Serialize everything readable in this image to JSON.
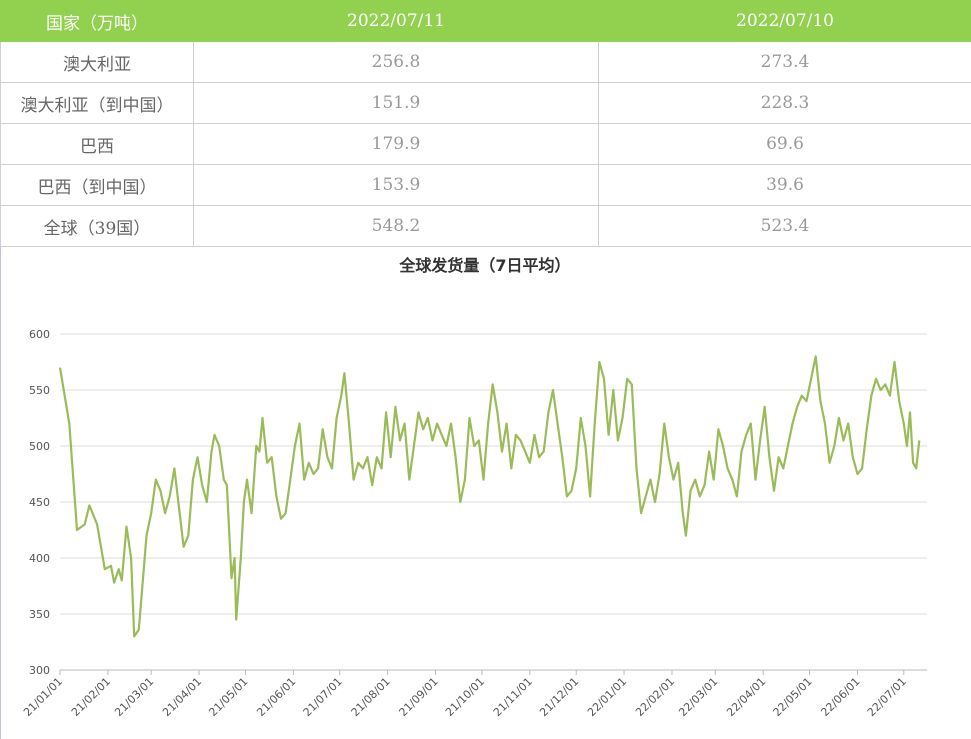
{
  "table": {
    "header": [
      "国家（万吨）",
      "2022/07/11",
      "2022/07/10"
    ],
    "rows": [
      [
        "澳大利亚",
        256.8,
        273.4
      ],
      [
        "澳大利亚（到中国）",
        151.9,
        228.3
      ],
      [
        "巴西",
        179.9,
        69.6
      ],
      [
        "巴西（到中国）",
        153.9,
        39.6
      ],
      [
        "全球（39国）",
        548.2,
        523.4
      ]
    ]
  },
  "chart_data": {
    "type": "line",
    "title": "全球发货量（7日平均）",
    "x": [
      "21/01/01",
      "21/01/07",
      "21/01/12",
      "21/01/17",
      "21/01/20",
      "21/01/25",
      "21/01/30",
      "21/02/03",
      "21/02/05",
      "21/02/08",
      "21/02/10",
      "21/02/13",
      "21/02/16",
      "21/02/18",
      "21/02/21",
      "21/02/26",
      "21/03/01",
      "21/03/04",
      "21/03/07",
      "21/03/10",
      "21/03/13",
      "21/03/16",
      "21/03/19",
      "21/03/22",
      "21/03/25",
      "21/03/28",
      "21/03/31",
      "21/04/03",
      "21/04/06",
      "21/04/09",
      "21/04/11",
      "21/04/14",
      "21/04/17",
      "21/04/19",
      "21/04/22",
      "21/04/24",
      "21/04/25",
      "21/04/28",
      "21/04/30",
      "21/05/02",
      "21/05/05",
      "21/05/08",
      "21/05/10",
      "21/05/12",
      "21/05/15",
      "21/05/18",
      "21/05/21",
      "21/05/24",
      "21/05/27",
      "21/05/30",
      "21/06/02",
      "21/06/05",
      "21/06/08",
      "21/06/11",
      "21/06/14",
      "21/06/17",
      "21/06/20",
      "21/06/23",
      "21/06/26",
      "21/06/29",
      "21/07/02",
      "21/07/04",
      "21/07/07",
      "21/07/10",
      "21/07/13",
      "21/07/16",
      "21/07/19",
      "21/07/22",
      "21/07/25",
      "21/07/28",
      "21/07/31",
      "21/08/03",
      "21/08/06",
      "21/08/09",
      "21/08/12",
      "21/08/15",
      "21/08/18",
      "21/08/21",
      "21/08/24",
      "21/08/27",
      "21/08/30",
      "21/09/02",
      "21/09/05",
      "21/09/08",
      "21/09/11",
      "21/09/14",
      "21/09/17",
      "21/09/20",
      "21/09/23",
      "21/09/26",
      "21/09/29",
      "21/10/02",
      "21/10/05",
      "21/10/08",
      "21/10/11",
      "21/10/14",
      "21/10/17",
      "21/10/20",
      "21/10/23",
      "21/10/26",
      "21/10/29",
      "21/11/01",
      "21/11/04",
      "21/11/07",
      "21/11/10",
      "21/11/13",
      "21/11/16",
      "21/11/19",
      "21/11/22",
      "21/11/25",
      "21/11/28",
      "21/12/01",
      "21/12/04",
      "21/12/07",
      "21/12/10",
      "21/12/13",
      "21/12/16",
      "21/12/19",
      "21/12/22",
      "21/12/25",
      "21/12/28",
      "21/12/31",
      "22/01/03",
      "22/01/06",
      "22/01/09",
      "22/01/12",
      "22/01/15",
      "22/01/18",
      "22/01/21",
      "22/01/24",
      "22/01/27",
      "22/01/30",
      "22/02/02",
      "22/02/05",
      "22/02/08",
      "22/02/10",
      "22/02/13",
      "22/02/16",
      "22/02/19",
      "22/02/22",
      "22/02/25",
      "22/02/28",
      "22/03/03",
      "22/03/06",
      "22/03/09",
      "22/03/12",
      "22/03/15",
      "22/03/18",
      "22/03/21",
      "22/03/24",
      "22/03/27",
      "22/03/30",
      "22/04/02",
      "22/04/05",
      "22/04/08",
      "22/04/11",
      "22/04/14",
      "22/04/17",
      "22/04/20",
      "22/04/23",
      "22/04/26",
      "22/04/29",
      "22/05/02",
      "22/05/05",
      "22/05/08",
      "22/05/11",
      "22/05/14",
      "22/05/17",
      "22/05/20",
      "22/05/23",
      "22/05/26",
      "22/05/29",
      "22/06/01",
      "22/06/04",
      "22/06/07",
      "22/06/10",
      "22/06/13",
      "22/06/16",
      "22/06/19",
      "22/06/22",
      "22/06/25",
      "22/06/28",
      "22/07/01",
      "22/07/03",
      "22/07/05",
      "22/07/07",
      "22/07/09",
      "22/07/11"
    ],
    "series": [
      {
        "name": "全球发货量",
        "color": "#9bbb59",
        "values": [
          570,
          520,
          425,
          430,
          447,
          430,
          390,
          393,
          378,
          390,
          380,
          428,
          400,
          330,
          336,
          420,
          440,
          470,
          460,
          440,
          455,
          480,
          445,
          410,
          420,
          470,
          490,
          465,
          450,
          495,
          510,
          500,
          470,
          465,
          382,
          400,
          345,
          400,
          450,
          470,
          440,
          500,
          495,
          525,
          485,
          490,
          455,
          435,
          440,
          470,
          500,
          520,
          470,
          485,
          475,
          480,
          515,
          490,
          480,
          525,
          545,
          565,
          520,
          470,
          485,
          480,
          490,
          465,
          490,
          480,
          530,
          490,
          535,
          505,
          520,
          470,
          500,
          530,
          515,
          525,
          505,
          520,
          510,
          500,
          520,
          490,
          450,
          470,
          525,
          500,
          505,
          470,
          520,
          555,
          530,
          495,
          520,
          480,
          510,
          505,
          495,
          485,
          510,
          490,
          495,
          530,
          550,
          520,
          490,
          455,
          460,
          480,
          525,
          500,
          455,
          520,
          575,
          560,
          510,
          550,
          505,
          525,
          560,
          555,
          480,
          440,
          455,
          470,
          450,
          475,
          520,
          490,
          470,
          485,
          440,
          420,
          460,
          470,
          455,
          465,
          495,
          470,
          515,
          500,
          480,
          470,
          455,
          495,
          510,
          520,
          470,
          505,
          535,
          490,
          460,
          490,
          480,
          500,
          520,
          535,
          545,
          540,
          560,
          580,
          540,
          520,
          485,
          500,
          525,
          505,
          520,
          490,
          475,
          480,
          515,
          545,
          560,
          550,
          555,
          545,
          575,
          540,
          520,
          500,
          530,
          485,
          480,
          505
        ]
      }
    ],
    "xlim": [
      "21/01/01",
      "22/07/16"
    ],
    "xticks": [
      "21/01/01",
      "21/02/01",
      "21/03/01",
      "21/04/01",
      "21/05/01",
      "21/06/01",
      "21/07/01",
      "21/08/01",
      "21/09/01",
      "21/10/01",
      "21/11/01",
      "21/12/01",
      "22/01/01",
      "22/02/01",
      "22/03/01",
      "22/04/01",
      "22/05/01",
      "22/06/01",
      "22/07/01"
    ],
    "ylim": [
      300,
      600
    ],
    "yticks": [
      300,
      350,
      400,
      450,
      500,
      550,
      600
    ],
    "grid": true
  }
}
